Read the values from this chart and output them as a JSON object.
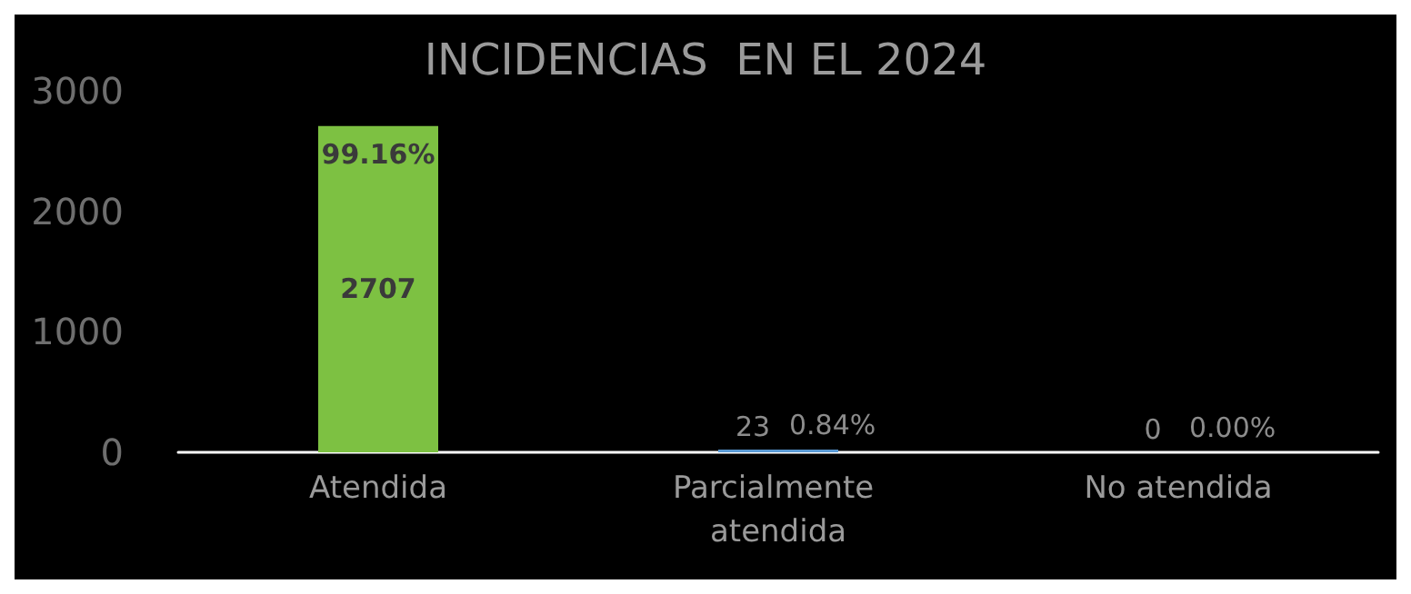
{
  "chart_data": {
    "type": "bar",
    "title": "INCIDENCIAS  EN EL 2024",
    "categories": [
      "Atendida",
      "Parcialmente atendida",
      "No atendida"
    ],
    "values": [
      2707,
      23,
      0
    ],
    "colors": [
      "#7dc142",
      "#5b9bd5",
      "#5b9bd5"
    ],
    "ylim": [
      0,
      3000
    ],
    "yticks": [
      0,
      1000,
      2000,
      3000
    ],
    "grid": false,
    "data_labels": true,
    "annotations": [
      {
        "text": "99.16%",
        "x": "Atendida",
        "y": 2707
      },
      {
        "text": "0.84%",
        "x": "Parcialmente atendida",
        "y": 23
      },
      {
        "text": "0.00%",
        "x": "No atendida",
        "y": 0
      }
    ]
  }
}
